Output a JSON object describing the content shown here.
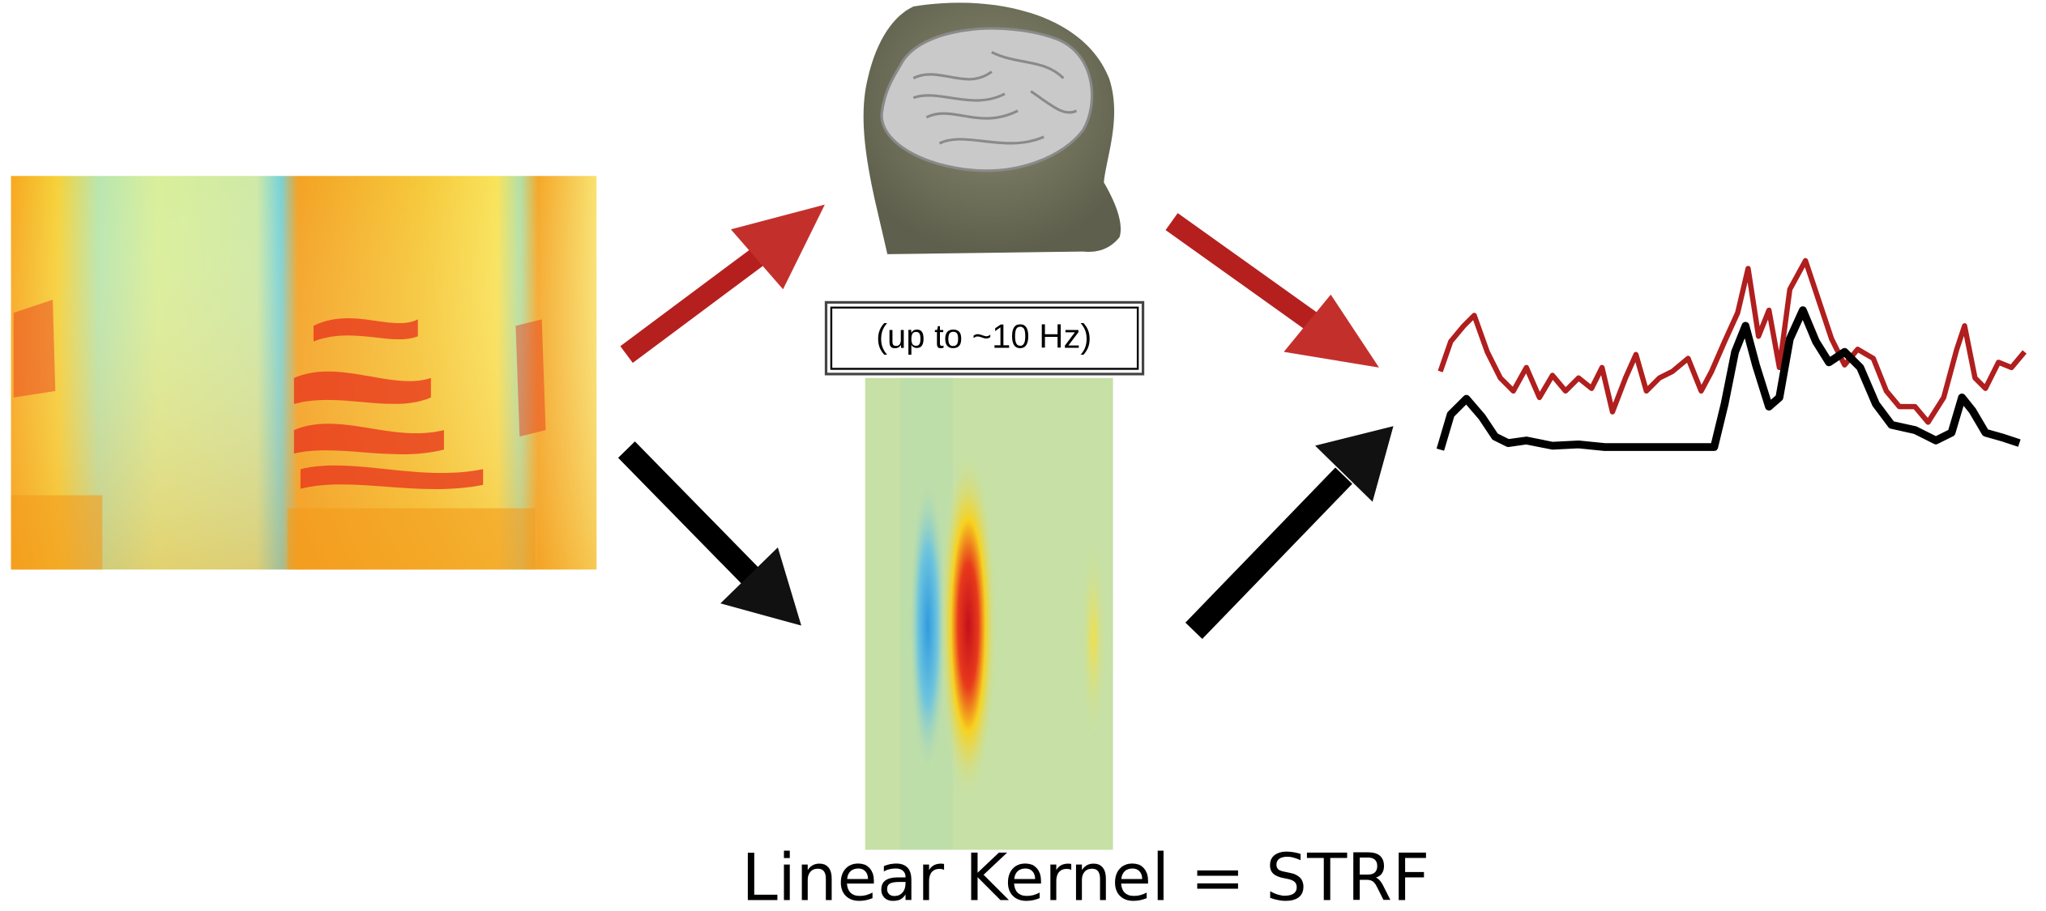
{
  "labels": {
    "kernel_note": "(up to ~10 Hz)",
    "caption": "Linear Kernel = STRF"
  }
}
